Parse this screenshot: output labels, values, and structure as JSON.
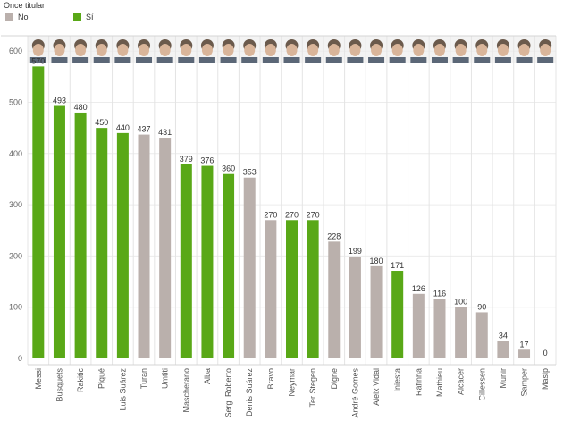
{
  "legend": {
    "title": "Once titular",
    "items": [
      {
        "label": "No",
        "color": "#bab0ac"
      },
      {
        "label": "Sí",
        "color": "#59a817"
      }
    ]
  },
  "chart_data": {
    "type": "bar",
    "title": "",
    "xlabel": "",
    "ylabel": "",
    "ylim": [
      0,
      630
    ],
    "yticks": [
      0,
      100,
      200,
      300,
      400,
      500,
      600
    ],
    "grid": true,
    "legend_position": "top-left",
    "categories": [
      "Messi",
      "Busquets",
      "Rakitic",
      "Piqué",
      "Luis Suárez",
      "Turan",
      "Umtiti",
      "Mascherano",
      "Alba",
      "Sergi Roberto",
      "Denis Suárez",
      "Bravo",
      "Neymar",
      "Ter Stegen",
      "Digne",
      "André Gomes",
      "Aleix Vidal",
      "Iniesta",
      "Rafinha",
      "Mathieu",
      "Alcácer",
      "Cillessen",
      "Munir",
      "Samper",
      "Masip"
    ],
    "values": [
      570,
      493,
      480,
      450,
      440,
      437,
      431,
      379,
      376,
      360,
      353,
      270,
      270,
      270,
      228,
      199,
      180,
      171,
      126,
      116,
      100,
      90,
      34,
      17,
      0
    ],
    "once_titular": [
      "Sí",
      "Sí",
      "Sí",
      "Sí",
      "Sí",
      "No",
      "No",
      "Sí",
      "Sí",
      "Sí",
      "No",
      "No",
      "Sí",
      "Sí",
      "No",
      "No",
      "No",
      "Sí",
      "No",
      "No",
      "No",
      "No",
      "No",
      "No",
      "No"
    ],
    "colors": {
      "Sí": "#59a817",
      "No": "#bab0ac"
    }
  }
}
